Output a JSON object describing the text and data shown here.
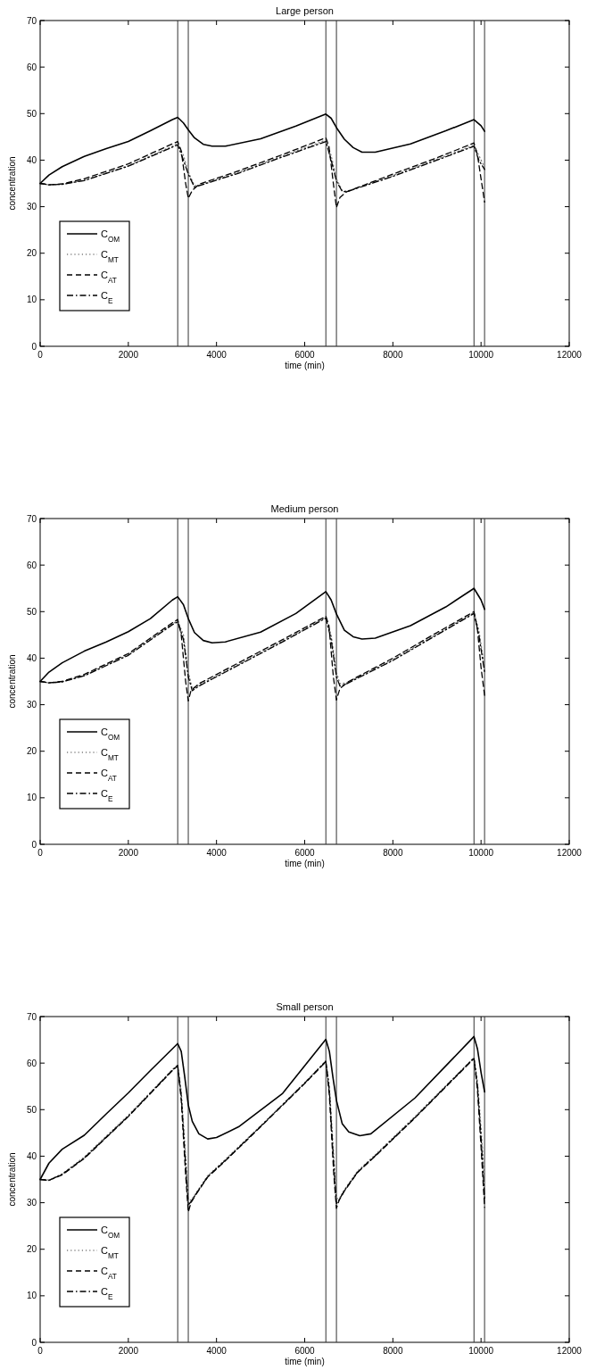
{
  "chart_data": [
    {
      "type": "line",
      "title": "Large person",
      "xlabel": "time (min)",
      "ylabel": "concentration",
      "xlim": [
        0,
        12000
      ],
      "xticks": [
        0,
        2000,
        4000,
        6000,
        8000,
        10000,
        12000
      ],
      "ylim": [
        0,
        70
      ],
      "yticks": [
        0,
        10,
        20,
        30,
        40,
        50,
        60,
        70
      ],
      "legend": "bottom left",
      "grid": false,
      "ref_lines": [
        {
          "axis": "x",
          "value": 3120,
          "color": "#333333"
        },
        {
          "axis": "x",
          "value": 3360,
          "color": "#333333"
        },
        {
          "axis": "x",
          "value": 6480,
          "color": "#333333"
        },
        {
          "axis": "x",
          "value": 6720,
          "color": "#333333"
        },
        {
          "axis": "x",
          "value": 9840,
          "color": "#333333"
        },
        {
          "axis": "x",
          "value": 10080,
          "color": "#333333"
        }
      ],
      "series": [
        {
          "name": "C$_{OM}$",
          "color": "#000000",
          "line_style": "solid",
          "x": [
            0,
            200,
            500,
            1000,
            1500,
            2000,
            2500,
            3000,
            3120,
            3250,
            3360,
            3500,
            3700,
            3900,
            4200,
            5000,
            5800,
            6480,
            6600,
            6720,
            6900,
            7100,
            7300,
            7600,
            8400,
            9200,
            9840,
            10000,
            10080
          ],
          "values": [
            35,
            36.8,
            38.6,
            40.8,
            42.5,
            44,
            46.3,
            48.7,
            49.2,
            48,
            46.5,
            44.8,
            43.4,
            43,
            43,
            44.6,
            47.3,
            49.9,
            49,
            47,
            44.5,
            42.7,
            41.7,
            41.7,
            43.5,
            46.3,
            48.7,
            47.4,
            46.2
          ]
        },
        {
          "name": "C$_{MT}$",
          "color": "#808080",
          "line_style": "dotted",
          "x": [
            0,
            200,
            500,
            1000,
            2000,
            3000,
            3120,
            3250,
            3360,
            3500,
            3600,
            4500,
            5500,
            6480,
            6600,
            6720,
            6850,
            6950,
            8000,
            9000,
            9840,
            9950,
            10080
          ],
          "values": [
            35,
            34.7,
            34.8,
            35.7,
            38.8,
            43,
            43.6,
            41,
            37.5,
            34.5,
            34.6,
            37.4,
            40.9,
            44.3,
            41,
            36,
            33.5,
            33.3,
            36.7,
            40.2,
            43.2,
            41,
            38.5
          ]
        },
        {
          "name": "C$_{AT}$",
          "color": "#000000",
          "line_style": "dashed",
          "x": [
            0,
            200,
            500,
            1000,
            2000,
            3000,
            3120,
            3200,
            3300,
            3360,
            3450,
            3600,
            4500,
            5500,
            6480,
            6550,
            6650,
            6720,
            6800,
            6950,
            8000,
            9000,
            9840,
            9920,
            10000,
            10080
          ],
          "values": [
            35,
            34.7,
            34.9,
            36,
            39.2,
            43.5,
            44,
            42,
            35,
            31.8,
            33.5,
            34.8,
            37.7,
            41.2,
            44.8,
            43,
            35,
            29.8,
            32,
            33.2,
            37,
            40.5,
            43.7,
            41,
            36,
            31
          ]
        },
        {
          "name": "C$_{E}$",
          "color": "#000000",
          "line_style": "dashdot",
          "x": [
            0,
            200,
            500,
            1000,
            2000,
            3000,
            3120,
            3250,
            3360,
            3500,
            3600,
            4500,
            5500,
            6480,
            6600,
            6720,
            6850,
            6950,
            8000,
            9000,
            9840,
            9950,
            10080
          ],
          "values": [
            35,
            34.7,
            34.8,
            35.6,
            38.7,
            42.8,
            43.3,
            40,
            37,
            34.2,
            34.5,
            37.2,
            40.7,
            44,
            40,
            35.5,
            33.3,
            33.2,
            36.5,
            40,
            43,
            40,
            38
          ]
        }
      ]
    },
    {
      "type": "line",
      "title": "Medium person",
      "xlabel": "time (min)",
      "ylabel": "concentration",
      "xlim": [
        0,
        12000
      ],
      "xticks": [
        0,
        2000,
        4000,
        6000,
        8000,
        10000,
        12000
      ],
      "ylim": [
        0,
        70
      ],
      "yticks": [
        0,
        10,
        20,
        30,
        40,
        50,
        60,
        70
      ],
      "legend": "bottom left",
      "grid": false,
      "ref_lines": [
        {
          "axis": "x",
          "value": 3120,
          "color": "#333333"
        },
        {
          "axis": "x",
          "value": 3360,
          "color": "#333333"
        },
        {
          "axis": "x",
          "value": 6480,
          "color": "#333333"
        },
        {
          "axis": "x",
          "value": 6720,
          "color": "#333333"
        },
        {
          "axis": "x",
          "value": 9840,
          "color": "#333333"
        },
        {
          "axis": "x",
          "value": 10080,
          "color": "#333333"
        }
      ],
      "series": [
        {
          "name": "C$_{OM}$",
          "color": "#000000",
          "line_style": "solid",
          "x": [
            0,
            200,
            500,
            1000,
            1500,
            2000,
            2500,
            3000,
            3120,
            3250,
            3360,
            3500,
            3700,
            3900,
            4200,
            5000,
            5800,
            6480,
            6600,
            6720,
            6900,
            7100,
            7300,
            7600,
            8400,
            9200,
            9840,
            10000,
            10080
          ],
          "values": [
            35,
            37,
            39,
            41.5,
            43.5,
            45.7,
            48.5,
            52.5,
            53.2,
            51.5,
            48.5,
            45.5,
            43.8,
            43.3,
            43.5,
            45.6,
            49.6,
            54.3,
            52.5,
            49.5,
            46,
            44.6,
            44.1,
            44.3,
            47,
            51,
            55,
            52.5,
            50.5
          ]
        },
        {
          "name": "C$_{MT}$",
          "color": "#808080",
          "line_style": "dotted",
          "x": [
            0,
            200,
            500,
            1000,
            2000,
            3000,
            3120,
            3250,
            3360,
            3450,
            3600,
            4500,
            5500,
            6480,
            6600,
            6720,
            6800,
            6950,
            8000,
            9000,
            9840,
            9950,
            10080
          ],
          "values": [
            35,
            34.7,
            34.9,
            36.3,
            40.8,
            47.4,
            48,
            45,
            37,
            33.5,
            34.2,
            38.7,
            43.7,
            48.8,
            45,
            37,
            34.5,
            34.7,
            39.7,
            45.2,
            49.8,
            46,
            38
          ]
        },
        {
          "name": "C$_{AT}$",
          "color": "#000000",
          "line_style": "dashed",
          "x": [
            0,
            200,
            500,
            1000,
            2000,
            3000,
            3120,
            3200,
            3300,
            3360,
            3420,
            3600,
            4500,
            5500,
            6480,
            6550,
            6650,
            6720,
            6800,
            7000,
            8000,
            9000,
            9840,
            9920,
            10000,
            10080
          ],
          "values": [
            35,
            34.7,
            35,
            36.5,
            41,
            47.6,
            48.3,
            45,
            35,
            30.8,
            33,
            34.5,
            39,
            44,
            49,
            47,
            36,
            31,
            33.5,
            35,
            40,
            45.5,
            50,
            46,
            38,
            32
          ]
        },
        {
          "name": "C$_{E}$",
          "color": "#000000",
          "line_style": "dashdot",
          "x": [
            0,
            200,
            500,
            1000,
            2000,
            3000,
            3120,
            3250,
            3360,
            3450,
            3600,
            4500,
            5500,
            6480,
            6600,
            6720,
            6800,
            6950,
            8000,
            9000,
            9840,
            9950,
            10080
          ],
          "values": [
            35,
            34.7,
            34.9,
            36.2,
            40.6,
            47.2,
            47.8,
            44,
            36,
            33,
            34,
            38.5,
            43.5,
            48.6,
            44,
            36,
            34,
            34.5,
            39.5,
            45,
            49.6,
            45,
            37
          ]
        }
      ]
    },
    {
      "type": "line",
      "title": "Small person",
      "xlabel": "time (min)",
      "ylabel": "concentration",
      "xlim": [
        0,
        12000
      ],
      "xticks": [
        0,
        2000,
        4000,
        6000,
        8000,
        10000,
        12000
      ],
      "ylim": [
        0,
        70
      ],
      "yticks": [
        0,
        10,
        20,
        30,
        40,
        50,
        60,
        70
      ],
      "legend": "bottom left",
      "grid": false,
      "ref_lines": [
        {
          "axis": "x",
          "value": 3120,
          "color": "#333333"
        },
        {
          "axis": "x",
          "value": 3360,
          "color": "#333333"
        },
        {
          "axis": "x",
          "value": 6480,
          "color": "#333333"
        },
        {
          "axis": "x",
          "value": 6720,
          "color": "#333333"
        },
        {
          "axis": "x",
          "value": 9840,
          "color": "#333333"
        },
        {
          "axis": "x",
          "value": 10080,
          "color": "#333333"
        }
      ],
      "series": [
        {
          "name": "C$_{OM}$",
          "color": "#000000",
          "line_style": "solid",
          "x": [
            0,
            200,
            500,
            1000,
            1500,
            2000,
            2500,
            3120,
            3200,
            3280,
            3360,
            3450,
            3600,
            3800,
            4000,
            4500,
            5500,
            6480,
            6560,
            6640,
            6720,
            6850,
            7000,
            7250,
            7500,
            8500,
            9840,
            9920,
            10000,
            10080
          ],
          "values": [
            35,
            38.5,
            41.5,
            44.5,
            49.1,
            53.6,
            58.4,
            64.2,
            62.5,
            57,
            51,
            47.5,
            44.8,
            43.7,
            44,
            46.3,
            53.5,
            65.1,
            62.5,
            57,
            52,
            47,
            45.2,
            44.4,
            44.8,
            52.5,
            65.7,
            63,
            58,
            53.8
          ]
        },
        {
          "name": "C$_{MT}$",
          "color": "#808080",
          "line_style": "dotted",
          "x": [
            0,
            200,
            500,
            1000,
            2000,
            3000,
            3120,
            3200,
            3300,
            3360,
            3420,
            3550,
            3800,
            4200,
            5000,
            6000,
            6480,
            6560,
            6660,
            6720,
            6780,
            6900,
            7200,
            7600,
            8500,
            9840,
            9920,
            10000,
            10080
          ],
          "values": [
            35,
            34.9,
            36.2,
            39.8,
            48.8,
            58.6,
            59.6,
            54,
            40,
            31,
            30.5,
            32.3,
            35.8,
            39.3,
            46.5,
            55.8,
            60.5,
            55,
            40,
            31,
            30.8,
            32.8,
            36.8,
            40.3,
            48.5,
            61.2,
            56,
            46,
            35
          ]
        },
        {
          "name": "C$_{AT}$",
          "color": "#000000",
          "line_style": "dashed",
          "x": [
            0,
            200,
            500,
            1000,
            2000,
            3000,
            3120,
            3200,
            3300,
            3360,
            3420,
            3550,
            3800,
            4200,
            5000,
            6000,
            6480,
            6560,
            6660,
            6720,
            6780,
            6900,
            7200,
            7600,
            8500,
            9840,
            9920,
            10000,
            10080
          ],
          "values": [
            35,
            34.8,
            36,
            39.5,
            48.5,
            58.4,
            59.4,
            52,
            36,
            28,
            30,
            32,
            35.5,
            39,
            46.3,
            55.6,
            60.3,
            53,
            36,
            28.8,
            30.5,
            32.5,
            36.5,
            40,
            48.2,
            61,
            54,
            42,
            29
          ]
        },
        {
          "name": "C$_{E}$",
          "color": "#000000",
          "line_style": "dashdot",
          "x": [
            0,
            200,
            500,
            1000,
            2000,
            3000,
            3120,
            3200,
            3300,
            3360,
            3420,
            3550,
            3800,
            4200,
            5000,
            6000,
            6480,
            6560,
            6660,
            6720,
            6780,
            6900,
            7200,
            7600,
            8500,
            9840,
            9920,
            10000,
            10080
          ],
          "values": [
            35,
            34.8,
            36.1,
            39.6,
            48.6,
            58.5,
            59.5,
            53,
            38,
            29.5,
            30.2,
            32.1,
            35.6,
            39.1,
            46.4,
            55.7,
            60.4,
            54,
            38,
            29.8,
            30.6,
            32.6,
            36.6,
            40.1,
            48.3,
            61.1,
            55,
            44,
            31
          ]
        }
      ]
    }
  ]
}
